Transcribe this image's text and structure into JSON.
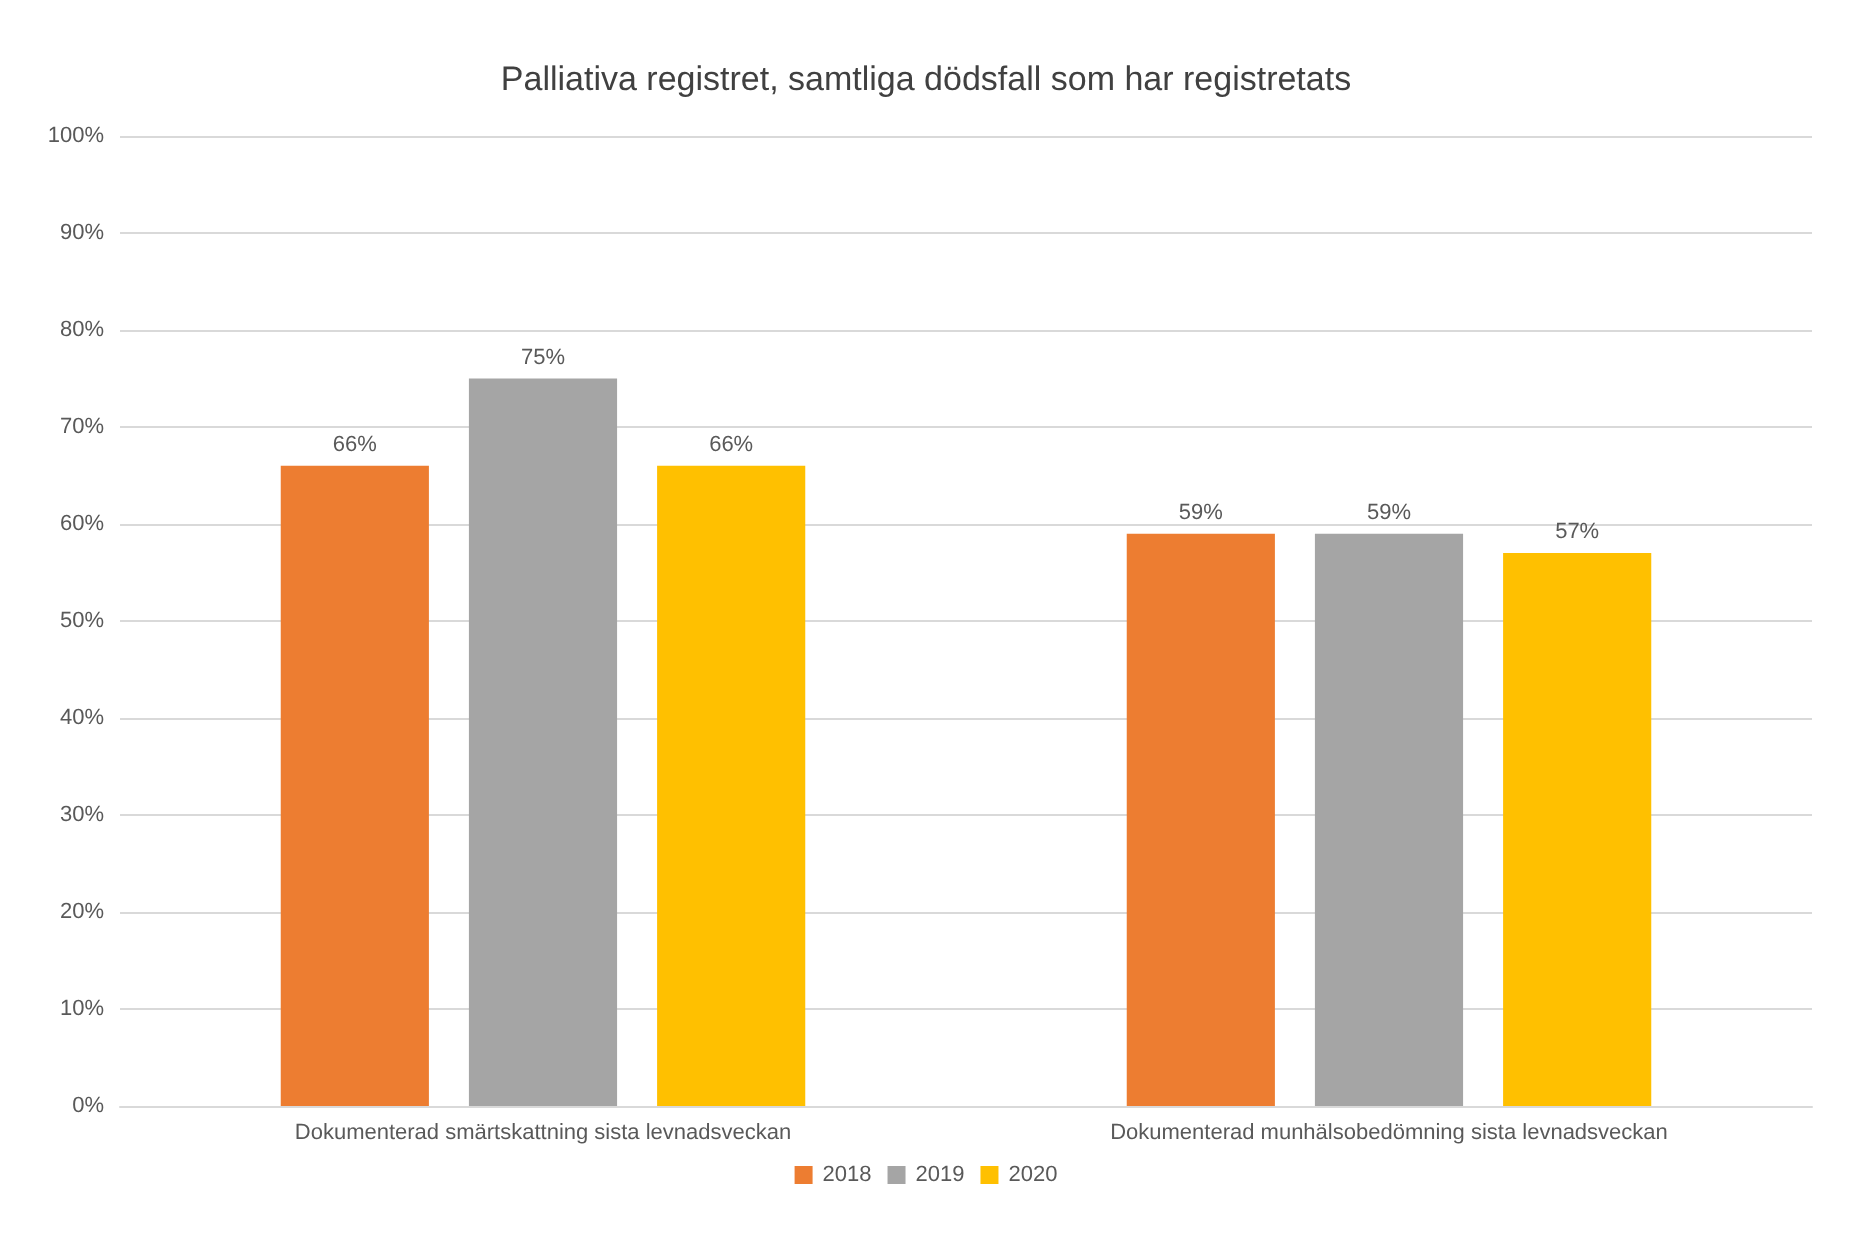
{
  "chart_data": {
    "type": "bar",
    "title": "Palliativa registret, samtliga dödsfall som har registretats",
    "categories": [
      "Dokumenterad smärtskattning sista levnadsveckan",
      "Dokumenterad munhälsobedömning sista levnadsveckan"
    ],
    "series": [
      {
        "name": "2018",
        "color": "#ed7d31",
        "values": [
          66,
          59
        ],
        "value_labels": [
          "66%",
          "59%"
        ]
      },
      {
        "name": "2019",
        "color": "#a5a5a5",
        "values": [
          75,
          59
        ],
        "value_labels": [
          "75%",
          "59%"
        ]
      },
      {
        "name": "2020",
        "color": "#ffc000",
        "values": [
          66,
          57
        ],
        "value_labels": [
          "66%",
          "57%"
        ]
      }
    ],
    "ylim": [
      0,
      100
    ],
    "yticks": [
      {
        "value": 0,
        "label": "0%"
      },
      {
        "value": 10,
        "label": "10%"
      },
      {
        "value": 20,
        "label": "20%"
      },
      {
        "value": 30,
        "label": "30%"
      },
      {
        "value": 40,
        "label": "40%"
      },
      {
        "value": 50,
        "label": "50%"
      },
      {
        "value": 60,
        "label": "60%"
      },
      {
        "value": 70,
        "label": "70%"
      },
      {
        "value": 80,
        "label": "80%"
      },
      {
        "value": 90,
        "label": "90%"
      },
      {
        "value": 100,
        "label": "100%"
      }
    ],
    "grid": "y",
    "legend": "bottom"
  }
}
